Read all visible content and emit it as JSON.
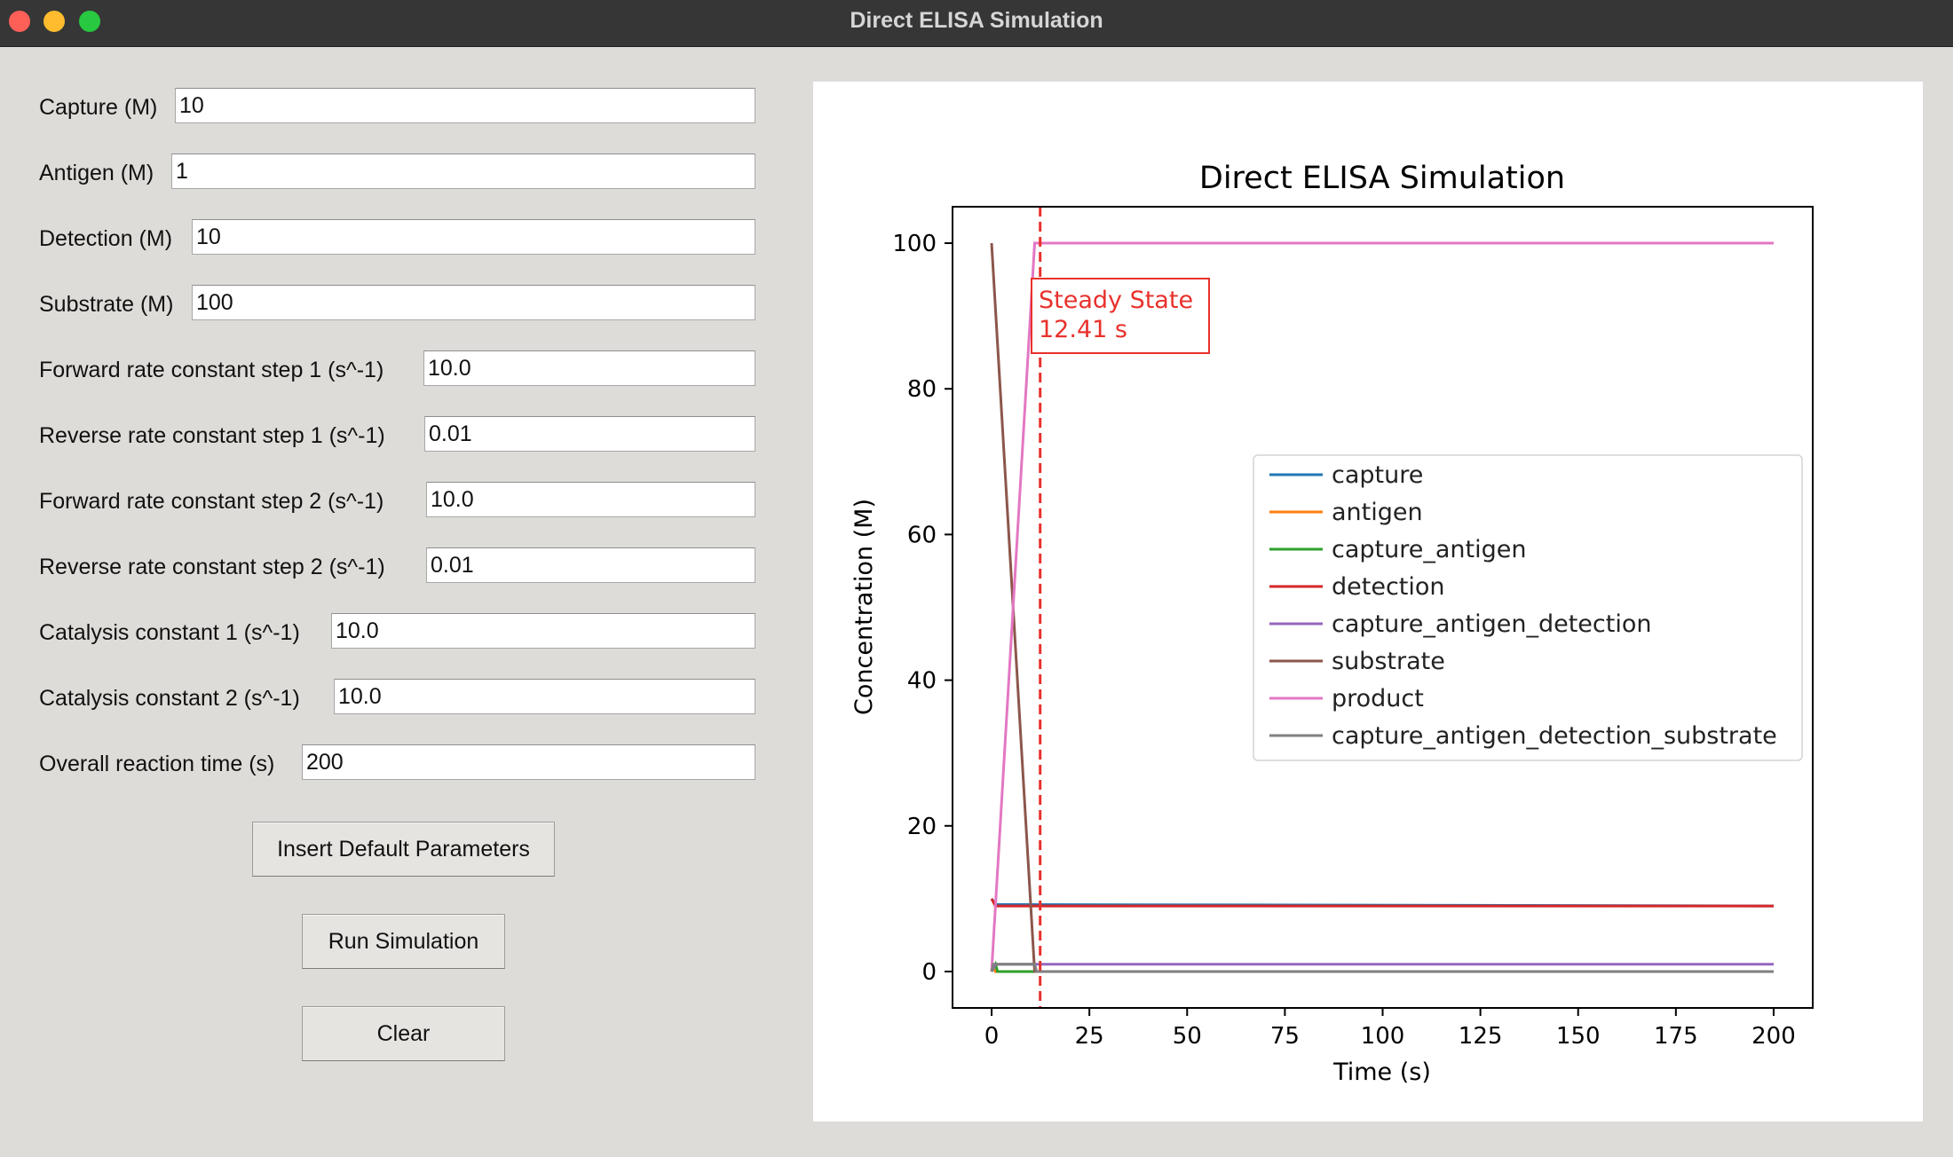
{
  "window": {
    "title": "Direct ELISA Simulation"
  },
  "form": {
    "fields": [
      {
        "label": "Capture (M)",
        "value": "10"
      },
      {
        "label": "Antigen (M)",
        "value": "1"
      },
      {
        "label": "Detection (M)",
        "value": "10"
      },
      {
        "label": "Substrate (M)",
        "value": "100"
      },
      {
        "label": "Forward rate constant step 1 (s^-1)",
        "value": "10.0"
      },
      {
        "label": "Reverse rate constant step 1 (s^-1)",
        "value": "0.01"
      },
      {
        "label": "Forward rate constant step 2 (s^-1)",
        "value": "10.0"
      },
      {
        "label": "Reverse rate constant step 2 (s^-1)",
        "value": "0.01"
      },
      {
        "label": "Catalysis constant 1 (s^-1)",
        "value": "10.0"
      },
      {
        "label": "Catalysis constant 2 (s^-1)",
        "value": "10.0"
      },
      {
        "label": "Overall reaction time (s)",
        "value": "200"
      }
    ],
    "buttons": {
      "defaults": "Insert Default Parameters",
      "run": "Run Simulation",
      "clear": "Clear"
    }
  },
  "chart_data": {
    "type": "line",
    "title": "Direct ELISA Simulation",
    "xlabel": "Time (s)",
    "ylabel": "Concentration (M)",
    "xlim": [
      -10,
      210
    ],
    "ylim": [
      -5,
      105
    ],
    "xticks": [
      0,
      25,
      50,
      75,
      100,
      125,
      150,
      175,
      200
    ],
    "yticks": [
      0,
      20,
      40,
      60,
      80,
      100
    ],
    "grid": false,
    "legend_position": "center-right",
    "steady_state": {
      "x": 12.41,
      "label_line1": "Steady State",
      "label_line2": "12.41 s",
      "color": "#e8312c"
    },
    "series": [
      {
        "name": "capture",
        "color": "#1f77b4",
        "points": [
          [
            0,
            10
          ],
          [
            1,
            9.2
          ],
          [
            200,
            9.0
          ]
        ]
      },
      {
        "name": "antigen",
        "color": "#ff7f0e",
        "points": [
          [
            0,
            1
          ],
          [
            1,
            0
          ],
          [
            200,
            0
          ]
        ]
      },
      {
        "name": "capture_antigen",
        "color": "#2ca02c",
        "points": [
          [
            0,
            0
          ],
          [
            1,
            1
          ],
          [
            1.5,
            0
          ],
          [
            200,
            0
          ]
        ]
      },
      {
        "name": "detection",
        "color": "#d62728",
        "points": [
          [
            0,
            10
          ],
          [
            1,
            9.0
          ],
          [
            200,
            9.0
          ]
        ]
      },
      {
        "name": "capture_antigen_detection",
        "color": "#9467bd",
        "points": [
          [
            0,
            0
          ],
          [
            1,
            1
          ],
          [
            200,
            1
          ]
        ]
      },
      {
        "name": "substrate",
        "color": "#8c564b",
        "points": [
          [
            0,
            100
          ],
          [
            11,
            0
          ],
          [
            200,
            0
          ]
        ]
      },
      {
        "name": "product",
        "color": "#e377c2",
        "points": [
          [
            0,
            0
          ],
          [
            11,
            100
          ],
          [
            200,
            100
          ]
        ]
      },
      {
        "name": "capture_antigen_detection_substrate",
        "color": "#7f7f7f",
        "points": [
          [
            0,
            0
          ],
          [
            0.5,
            1
          ],
          [
            11,
            1
          ],
          [
            11.5,
            0
          ],
          [
            200,
            0
          ]
        ]
      }
    ]
  }
}
